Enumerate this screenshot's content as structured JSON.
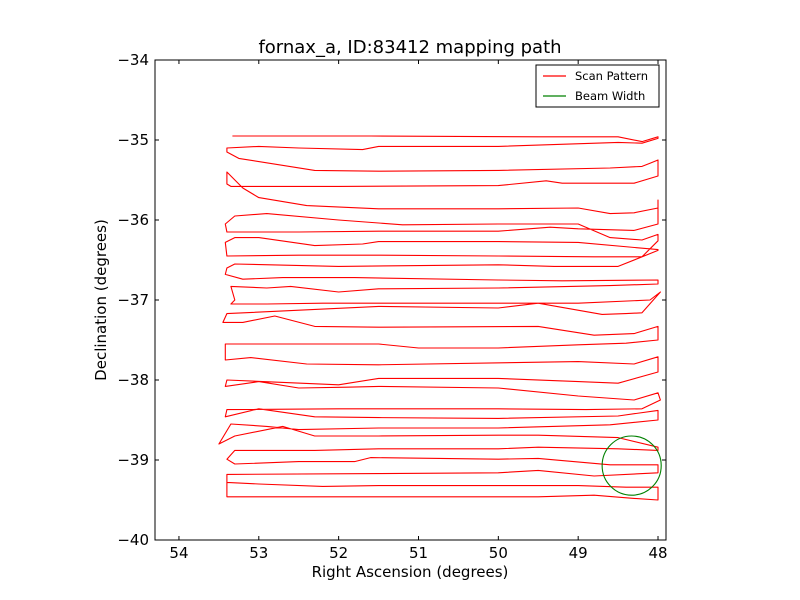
{
  "chart_data": {
    "type": "line",
    "title": "fornax_a, ID:83412 mapping path",
    "xlabel": "Right Ascension (degrees)",
    "ylabel": "Declination (degrees)",
    "xlim": [
      54.3,
      47.9
    ],
    "ylim": [
      -40,
      -34
    ],
    "xticks": [
      54,
      53,
      52,
      51,
      50,
      49,
      48
    ],
    "yticks": [
      -34,
      -35,
      -36,
      -37,
      -38,
      -39,
      -40
    ],
    "xtick_labels": [
      "54",
      "53",
      "52",
      "51",
      "50",
      "49",
      "48"
    ],
    "ytick_labels": [
      "−34",
      "−35",
      "−36",
      "−37",
      "−38",
      "−39",
      "−40"
    ],
    "legend_position": "top-right",
    "series": [
      {
        "name": "Scan Pattern",
        "color": "#ff0000",
        "style": "line",
        "points": [
          [
            53.33,
            -34.95
          ],
          [
            51.6,
            -34.95
          ],
          [
            49.5,
            -34.96
          ],
          [
            48.5,
            -34.96
          ],
          [
            48.2,
            -35.02
          ],
          [
            48.0,
            -34.96
          ],
          [
            48.0,
            -34.98
          ],
          [
            48.2,
            -35.04
          ],
          [
            48.5,
            -35.03
          ],
          [
            50.0,
            -35.08
          ],
          [
            51.5,
            -35.08
          ],
          [
            51.7,
            -35.12
          ],
          [
            52.5,
            -35.1
          ],
          [
            53.0,
            -35.08
          ],
          [
            53.4,
            -35.1
          ],
          [
            53.4,
            -35.15
          ],
          [
            53.25,
            -35.23
          ],
          [
            52.3,
            -35.38
          ],
          [
            51.5,
            -35.39
          ],
          [
            50.0,
            -35.38
          ],
          [
            48.6,
            -35.35
          ],
          [
            48.2,
            -35.33
          ],
          [
            48.1,
            -35.29
          ],
          [
            48.0,
            -35.25
          ],
          [
            48.0,
            -35.45
          ],
          [
            48.3,
            -35.54
          ],
          [
            49.2,
            -35.54
          ],
          [
            49.4,
            -35.51
          ],
          [
            50.0,
            -35.57
          ],
          [
            52.0,
            -35.58
          ],
          [
            53.35,
            -35.58
          ],
          [
            53.4,
            -35.55
          ],
          [
            53.4,
            -35.4
          ],
          [
            53.2,
            -35.6
          ],
          [
            53.0,
            -35.72
          ],
          [
            52.4,
            -35.82
          ],
          [
            51.5,
            -35.86
          ],
          [
            50.0,
            -35.86
          ],
          [
            49.0,
            -35.85
          ],
          [
            48.6,
            -35.92
          ],
          [
            48.3,
            -35.91
          ],
          [
            48.0,
            -35.85
          ],
          [
            48.0,
            -35.75
          ],
          [
            48.0,
            -36.05
          ],
          [
            48.3,
            -36.13
          ],
          [
            49.0,
            -36.11
          ],
          [
            49.35,
            -36.09
          ],
          [
            50.0,
            -36.14
          ],
          [
            51.5,
            -36.14
          ],
          [
            52.5,
            -36.15
          ],
          [
            53.4,
            -36.15
          ],
          [
            53.42,
            -36.05
          ],
          [
            53.3,
            -35.95
          ],
          [
            52.9,
            -35.92
          ],
          [
            52.0,
            -36.0
          ],
          [
            51.2,
            -36.06
          ],
          [
            50.0,
            -36.05
          ],
          [
            49.0,
            -36.05
          ],
          [
            48.6,
            -36.22
          ],
          [
            48.2,
            -36.25
          ],
          [
            48.0,
            -36.18
          ],
          [
            48.0,
            -36.26
          ],
          [
            48.2,
            -36.46
          ],
          [
            48.8,
            -36.46
          ],
          [
            50.0,
            -36.45
          ],
          [
            51.5,
            -36.44
          ],
          [
            52.5,
            -36.44
          ],
          [
            53.4,
            -36.45
          ],
          [
            53.42,
            -36.28
          ],
          [
            53.3,
            -36.22
          ],
          [
            53.0,
            -36.22
          ],
          [
            52.3,
            -36.32
          ],
          [
            51.7,
            -36.3
          ],
          [
            51.5,
            -36.27
          ],
          [
            50.0,
            -36.27
          ],
          [
            49.0,
            -36.28
          ],
          [
            48.0,
            -36.37
          ],
          [
            48.0,
            -36.38
          ],
          [
            48.5,
            -36.58
          ],
          [
            49.3,
            -36.58
          ],
          [
            50.0,
            -36.56
          ],
          [
            52.0,
            -36.58
          ],
          [
            53.3,
            -36.55
          ],
          [
            53.4,
            -36.6
          ],
          [
            53.42,
            -36.68
          ],
          [
            53.2,
            -36.74
          ],
          [
            52.7,
            -36.72
          ],
          [
            51.8,
            -36.72
          ],
          [
            50.0,
            -36.75
          ],
          [
            49.2,
            -36.76
          ],
          [
            48.0,
            -36.75
          ],
          [
            48.0,
            -36.8
          ],
          [
            48.6,
            -36.82
          ],
          [
            50.0,
            -36.85
          ],
          [
            51.5,
            -36.86
          ],
          [
            52.0,
            -36.9
          ],
          [
            52.6,
            -36.83
          ],
          [
            52.9,
            -36.85
          ],
          [
            53.35,
            -36.83
          ],
          [
            53.3,
            -37.0
          ],
          [
            53.35,
            -37.05
          ],
          [
            52.9,
            -37.05
          ],
          [
            52.2,
            -37.04
          ],
          [
            51.0,
            -37.04
          ],
          [
            50.0,
            -37.04
          ],
          [
            49.0,
            -37.04
          ],
          [
            48.1,
            -37.0
          ],
          [
            47.97,
            -36.9
          ],
          [
            48.2,
            -37.16
          ],
          [
            48.4,
            -37.17
          ],
          [
            48.7,
            -37.18
          ],
          [
            49.5,
            -37.04
          ],
          [
            50.0,
            -37.1
          ],
          [
            51.5,
            -37.08
          ],
          [
            53.4,
            -37.17
          ],
          [
            53.45,
            -37.28
          ],
          [
            53.2,
            -37.28
          ],
          [
            52.8,
            -37.2
          ],
          [
            52.3,
            -37.33
          ],
          [
            51.5,
            -37.34
          ],
          [
            49.5,
            -37.33
          ],
          [
            48.8,
            -37.44
          ],
          [
            48.3,
            -37.42
          ],
          [
            48.0,
            -37.33
          ],
          [
            48.0,
            -37.5
          ],
          [
            48.4,
            -37.54
          ],
          [
            49.0,
            -37.56
          ],
          [
            50.0,
            -37.6
          ],
          [
            51.0,
            -37.6
          ],
          [
            51.5,
            -37.55
          ],
          [
            52.5,
            -37.55
          ],
          [
            53.42,
            -37.55
          ],
          [
            53.42,
            -37.75
          ],
          [
            53.1,
            -37.72
          ],
          [
            52.4,
            -37.8
          ],
          [
            51.5,
            -37.81
          ],
          [
            49.0,
            -37.77
          ],
          [
            48.3,
            -37.8
          ],
          [
            48.0,
            -37.71
          ],
          [
            48.0,
            -37.9
          ],
          [
            48.5,
            -38.04
          ],
          [
            49.0,
            -38.02
          ],
          [
            50.0,
            -37.98
          ],
          [
            51.5,
            -37.98
          ],
          [
            52.0,
            -38.06
          ],
          [
            53.4,
            -38.0
          ],
          [
            53.42,
            -38.08
          ],
          [
            53.0,
            -38.02
          ],
          [
            52.5,
            -38.1
          ],
          [
            51.9,
            -38.09
          ],
          [
            51.5,
            -38.08
          ],
          [
            50.0,
            -38.1
          ],
          [
            49.0,
            -38.2
          ],
          [
            48.3,
            -38.25
          ],
          [
            48.0,
            -38.16
          ],
          [
            47.97,
            -38.25
          ],
          [
            48.2,
            -38.36
          ],
          [
            48.9,
            -38.37
          ],
          [
            50.0,
            -38.36
          ],
          [
            52.0,
            -38.36
          ],
          [
            53.4,
            -38.37
          ],
          [
            53.42,
            -38.46
          ],
          [
            53.0,
            -38.36
          ],
          [
            52.3,
            -38.46
          ],
          [
            51.5,
            -38.47
          ],
          [
            50.0,
            -38.48
          ],
          [
            48.5,
            -38.45
          ],
          [
            48.0,
            -38.38
          ],
          [
            48.0,
            -38.5
          ],
          [
            48.6,
            -38.56
          ],
          [
            50.0,
            -38.6
          ],
          [
            51.5,
            -38.6
          ],
          [
            52.5,
            -38.62
          ],
          [
            52.9,
            -38.58
          ],
          [
            53.35,
            -38.55
          ],
          [
            53.5,
            -38.8
          ],
          [
            53.3,
            -38.7
          ],
          [
            52.7,
            -38.58
          ],
          [
            52.3,
            -38.7
          ],
          [
            51.5,
            -38.7
          ],
          [
            50.0,
            -38.69
          ],
          [
            49.5,
            -38.69
          ],
          [
            48.5,
            -38.72
          ],
          [
            48.0,
            -38.84
          ],
          [
            48.0,
            -38.88
          ],
          [
            48.5,
            -38.86
          ],
          [
            49.5,
            -38.84
          ],
          [
            50.0,
            -38.86
          ],
          [
            51.5,
            -38.86
          ],
          [
            52.3,
            -38.88
          ],
          [
            53.3,
            -38.88
          ],
          [
            53.4,
            -38.99
          ],
          [
            53.3,
            -39.05
          ],
          [
            52.5,
            -39.02
          ],
          [
            51.8,
            -39.02
          ],
          [
            51.6,
            -38.97
          ],
          [
            50.0,
            -38.99
          ],
          [
            49.5,
            -38.98
          ],
          [
            48.6,
            -39.06
          ],
          [
            48.0,
            -39.06
          ],
          [
            48.0,
            -39.16
          ],
          [
            48.8,
            -39.2
          ],
          [
            49.5,
            -39.13
          ],
          [
            50.0,
            -39.16
          ],
          [
            51.5,
            -39.17
          ],
          [
            53.4,
            -39.18
          ],
          [
            53.4,
            -39.28
          ],
          [
            53.0,
            -39.3
          ],
          [
            52.2,
            -39.33
          ],
          [
            51.5,
            -39.32
          ],
          [
            50.0,
            -39.32
          ],
          [
            49.0,
            -39.32
          ],
          [
            48.4,
            -39.34
          ],
          [
            48.0,
            -39.34
          ],
          [
            48.0,
            -39.5
          ],
          [
            48.3,
            -39.48
          ],
          [
            48.8,
            -39.44
          ],
          [
            49.5,
            -39.46
          ],
          [
            51.0,
            -39.46
          ],
          [
            52.5,
            -39.46
          ],
          [
            53.4,
            -39.46
          ],
          [
            53.4,
            -39.25
          ]
        ]
      },
      {
        "name": "Beam Width",
        "color": "#008000",
        "style": "circle",
        "center": [
          48.33,
          -39.07
        ],
        "radius": 0.37
      }
    ]
  }
}
